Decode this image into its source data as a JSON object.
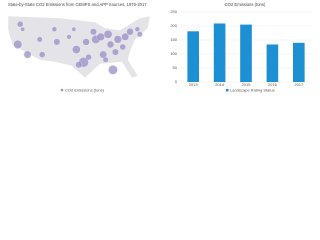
{
  "charts": [
    {
      "type": "bubble",
      "title": "State-by-State CO2 Emissions from CEMPS and APP Sources, 1970-2017",
      "xlim": [
        -125,
        -66
      ],
      "ylim": [
        24,
        50
      ],
      "color": "#9a8ec6",
      "series": [
        {
          "name": "CO2 Emissions (tons)",
          "x": [
            -120,
            -121,
            -117,
            -112,
            -106,
            -105,
            -100,
            -98,
            -97,
            -94,
            -93,
            -90,
            -89,
            -87,
            -86,
            -84,
            -83,
            -81,
            -80,
            -78,
            -77,
            -75,
            -72,
            -71,
            -82,
            -92,
            -96,
            -85,
            -111,
            -119
          ],
          "y": [
            46,
            38,
            34,
            40,
            44,
            39,
            41,
            44,
            36,
            31,
            39,
            43,
            40,
            41,
            34,
            42,
            38,
            35,
            40,
            37,
            41,
            43,
            44,
            42,
            28,
            33,
            30,
            32,
            34,
            44
          ],
          "size": [
            30,
            60,
            45,
            25,
            20,
            35,
            18,
            15,
            55,
            80,
            40,
            35,
            60,
            50,
            45,
            55,
            40,
            35,
            50,
            30,
            45,
            40,
            20,
            25,
            70,
            30,
            35,
            25,
            30,
            15
          ]
        }
      ]
    },
    {
      "type": "bar",
      "title": "CO2 Emissions (tons)",
      "categories": [
        "2013",
        "2014",
        "2015",
        "2016",
        "2017"
      ],
      "series": [
        {
          "name": "Landscape Rating Status",
          "color": "#1d8fd3",
          "values": [
            181,
            209,
            205,
            134,
            140
          ]
        }
      ],
      "ylim": [
        0,
        250
      ],
      "yticks": [
        0,
        50,
        100,
        150,
        200,
        250
      ],
      "grid": true
    }
  ]
}
